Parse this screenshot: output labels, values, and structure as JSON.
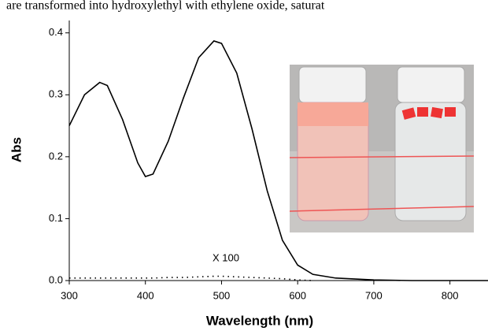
{
  "header_text": "are transformed into hydroxylethyl with ethylene oxide, saturat",
  "chart_data": {
    "type": "line",
    "xlabel": "Wavelength (nm)",
    "ylabel": "Abs",
    "annotation": "X 100",
    "x": [
      300,
      320,
      340,
      350,
      370,
      390,
      400,
      410,
      430,
      450,
      470,
      490,
      500,
      520,
      540,
      560,
      580,
      600,
      620,
      650,
      700,
      750,
      800,
      850
    ],
    "series": [
      {
        "color": "#000000",
        "dash": "solid",
        "values": [
          0.25,
          0.3,
          0.32,
          0.315,
          0.26,
          0.19,
          0.168,
          0.172,
          0.225,
          0.295,
          0.36,
          0.387,
          0.383,
          0.335,
          0.245,
          0.145,
          0.065,
          0.025,
          0.01,
          0.004,
          0.001,
          0,
          0,
          0
        ]
      },
      {
        "color": "#000000",
        "dash": "dotted",
        "values": [
          0.004,
          0.004,
          0.004,
          0.004,
          0.004,
          0.004,
          0.004,
          0.004,
          0.005,
          0.005,
          0.006,
          0.007,
          0.007,
          0.006,
          0.005,
          0.004,
          0.003,
          0.001,
          0,
          null,
          null,
          null,
          null,
          null
        ]
      }
    ],
    "xlim": [
      300,
      850
    ],
    "ylim": [
      0,
      0.42
    ],
    "xticks": [
      300,
      400,
      500,
      600,
      700,
      800
    ],
    "yticks": [
      {
        "value": 0,
        "label": "0.0"
      },
      0.1,
      0.2,
      0.3,
      0.4
    ]
  }
}
